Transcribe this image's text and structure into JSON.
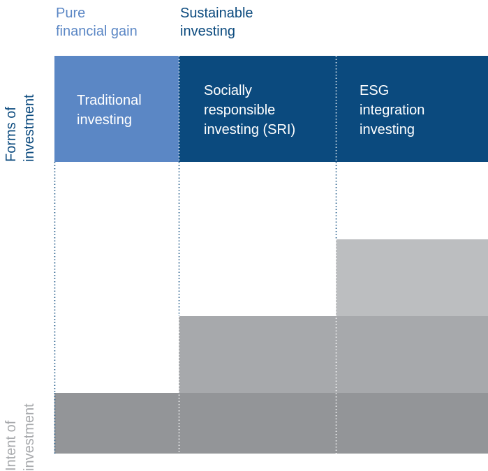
{
  "column_groups": [
    {
      "lines": [
        "Pure",
        "financial gain"
      ]
    },
    {
      "lines": [
        "Sustainable",
        "investing"
      ]
    }
  ],
  "row_labels": [
    {
      "lines": [
        "Forms of",
        "investment"
      ]
    },
    {
      "lines": [
        "Intent of",
        "investment"
      ]
    }
  ],
  "forms": [
    {
      "lines": [
        "Traditional",
        "investing"
      ]
    },
    {
      "lines": [
        "Socially",
        "responsible",
        "investing (SRI)"
      ]
    },
    {
      "lines": [
        "ESG",
        "integration",
        "investing"
      ]
    }
  ]
}
